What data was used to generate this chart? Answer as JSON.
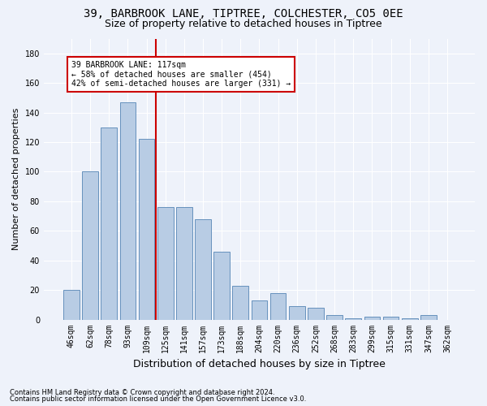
{
  "title_line1": "39, BARBROOK LANE, TIPTREE, COLCHESTER, CO5 0EE",
  "title_line2": "Size of property relative to detached houses in Tiptree",
  "xlabel": "Distribution of detached houses by size in Tiptree",
  "ylabel": "Number of detached properties",
  "categories": [
    "46sqm",
    "62sqm",
    "78sqm",
    "93sqm",
    "109sqm",
    "125sqm",
    "141sqm",
    "157sqm",
    "173sqm",
    "188sqm",
    "204sqm",
    "220sqm",
    "236sqm",
    "252sqm",
    "268sqm",
    "283sqm",
    "299sqm",
    "315sqm",
    "331sqm",
    "347sqm",
    "362sqm"
  ],
  "values": [
    20,
    100,
    130,
    147,
    122,
    76,
    76,
    68,
    46,
    23,
    13,
    18,
    9,
    8,
    3,
    1,
    2,
    2,
    1,
    3,
    0
  ],
  "bar_color": "#b8cce4",
  "bar_edge_color": "#5585b5",
  "vline_x_index": 4.5,
  "vline_color": "#cc0000",
  "annotation_text": "39 BARBROOK LANE: 117sqm\n← 58% of detached houses are smaller (454)\n42% of semi-detached houses are larger (331) →",
  "annotation_box_color": "#ffffff",
  "annotation_box_edge": "#cc0000",
  "ylim": [
    0,
    190
  ],
  "yticks": [
    0,
    20,
    40,
    60,
    80,
    100,
    120,
    140,
    160,
    180
  ],
  "footer_line1": "Contains HM Land Registry data © Crown copyright and database right 2024.",
  "footer_line2": "Contains public sector information licensed under the Open Government Licence v3.0.",
  "background_color": "#eef2fa",
  "grid_color": "#ffffff",
  "title_fontsize": 10,
  "subtitle_fontsize": 9,
  "tick_fontsize": 7,
  "ylabel_fontsize": 8,
  "xlabel_fontsize": 9
}
